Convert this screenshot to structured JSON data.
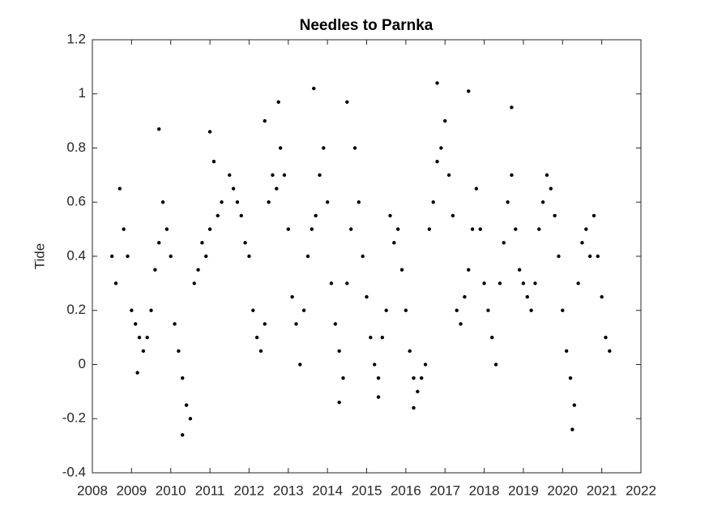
{
  "chart_data": {
    "type": "scatter",
    "title": "Needles to Parnka",
    "y_label": "Tide",
    "color": "#000000",
    "grid": false,
    "xlim": [
      2008,
      2022
    ],
    "xticks": [
      2008,
      2009,
      2010,
      2011,
      2012,
      2013,
      2014,
      2015,
      2016,
      2017,
      2018,
      2019,
      2020,
      2021,
      2022
    ],
    "ylim": [
      -0.4,
      1.2
    ],
    "yticks": [
      -0.4,
      -0.2,
      0,
      0.2,
      0.4,
      0.6,
      0.8,
      1,
      1.2
    ],
    "x": [
      2008.5,
      2008.6,
      2008.7,
      2008.8,
      2008.9,
      2009.0,
      2009.1,
      2009.2,
      2009.3,
      2009.4,
      2009.5,
      2009.6,
      2009.7,
      2009.8,
      2009.9,
      2010.0,
      2010.1,
      2010.2,
      2010.3,
      2010.4,
      2010.5,
      2010.6,
      2010.7,
      2010.8,
      2010.9,
      2011.0,
      2011.1,
      2011.2,
      2011.3,
      2011.5,
      2011.6,
      2011.7,
      2011.8,
      2011.9,
      2012.0,
      2012.1,
      2012.2,
      2012.3,
      2012.4,
      2012.5,
      2012.6,
      2012.7,
      2012.8,
      2012.9,
      2013.0,
      2013.1,
      2013.2,
      2013.3,
      2013.4,
      2013.5,
      2013.6,
      2013.7,
      2013.8,
      2013.9,
      2014.0,
      2014.1,
      2014.2,
      2014.3,
      2014.4,
      2014.5,
      2014.6,
      2014.7,
      2014.8,
      2014.9,
      2015.0,
      2015.1,
      2015.2,
      2015.3,
      2015.4,
      2015.5,
      2015.6,
      2015.7,
      2015.8,
      2015.9,
      2016.0,
      2016.1,
      2016.2,
      2016.3,
      2016.4,
      2016.5,
      2016.6,
      2016.7,
      2016.8,
      2016.9,
      2017.0,
      2017.1,
      2017.2,
      2017.3,
      2017.4,
      2017.5,
      2017.6,
      2017.7,
      2017.8,
      2017.9,
      2018.0,
      2018.1,
      2018.2,
      2018.3,
      2018.4,
      2018.5,
      2018.6,
      2018.7,
      2018.8,
      2018.9,
      2019.0,
      2019.1,
      2019.2,
      2019.3,
      2019.4,
      2019.5,
      2019.6,
      2019.7,
      2019.8,
      2019.9,
      2020.0,
      2020.1,
      2020.2,
      2020.3,
      2020.4,
      2020.5,
      2020.6,
      2020.7,
      2020.8,
      2020.9,
      2021.0,
      2021.1,
      2021.2,
      2013.65,
      2016.8,
      2017.6,
      2014.5,
      2012.75,
      2018.7,
      2009.7,
      2010.3,
      2015.3,
      2016.2,
      2020.25,
      2014.3,
      2009.15,
      2011.0,
      2012.4
    ],
    "values": [
      0.4,
      0.3,
      0.65,
      0.5,
      0.4,
      0.2,
      0.15,
      0.1,
      0.05,
      0.1,
      0.2,
      0.35,
      0.45,
      0.6,
      0.5,
      0.4,
      0.15,
      0.05,
      -0.05,
      -0.15,
      -0.2,
      0.3,
      0.35,
      0.45,
      0.4,
      0.5,
      0.75,
      0.55,
      0.6,
      0.7,
      0.65,
      0.6,
      0.55,
      0.45,
      0.4,
      0.2,
      0.1,
      0.05,
      0.15,
      0.6,
      0.7,
      0.65,
      0.8,
      0.7,
      0.5,
      0.25,
      0.15,
      0.0,
      0.2,
      0.4,
      0.5,
      0.55,
      0.7,
      0.8,
      0.6,
      0.3,
      0.15,
      0.05,
      -0.05,
      0.3,
      0.5,
      0.8,
      0.6,
      0.4,
      0.25,
      0.1,
      0.0,
      -0.05,
      0.1,
      0.2,
      0.55,
      0.45,
      0.5,
      0.35,
      0.2,
      0.05,
      -0.05,
      -0.1,
      -0.05,
      0.0,
      0.5,
      0.6,
      0.75,
      0.8,
      0.9,
      0.7,
      0.55,
      0.2,
      0.15,
      0.25,
      0.35,
      0.5,
      0.65,
      0.5,
      0.3,
      0.2,
      0.1,
      0.0,
      0.3,
      0.45,
      0.6,
      0.7,
      0.5,
      0.35,
      0.3,
      0.25,
      0.2,
      0.3,
      0.5,
      0.6,
      0.7,
      0.65,
      0.55,
      0.4,
      0.2,
      0.05,
      -0.05,
      -0.15,
      0.3,
      0.45,
      0.5,
      0.4,
      0.55,
      0.4,
      0.25,
      0.1,
      0.05,
      1.02,
      1.04,
      1.01,
      0.97,
      0.97,
      0.95,
      0.87,
      -0.26,
      -0.12,
      -0.16,
      -0.24,
      -0.14,
      -0.03,
      0.86,
      0.9
    ]
  }
}
